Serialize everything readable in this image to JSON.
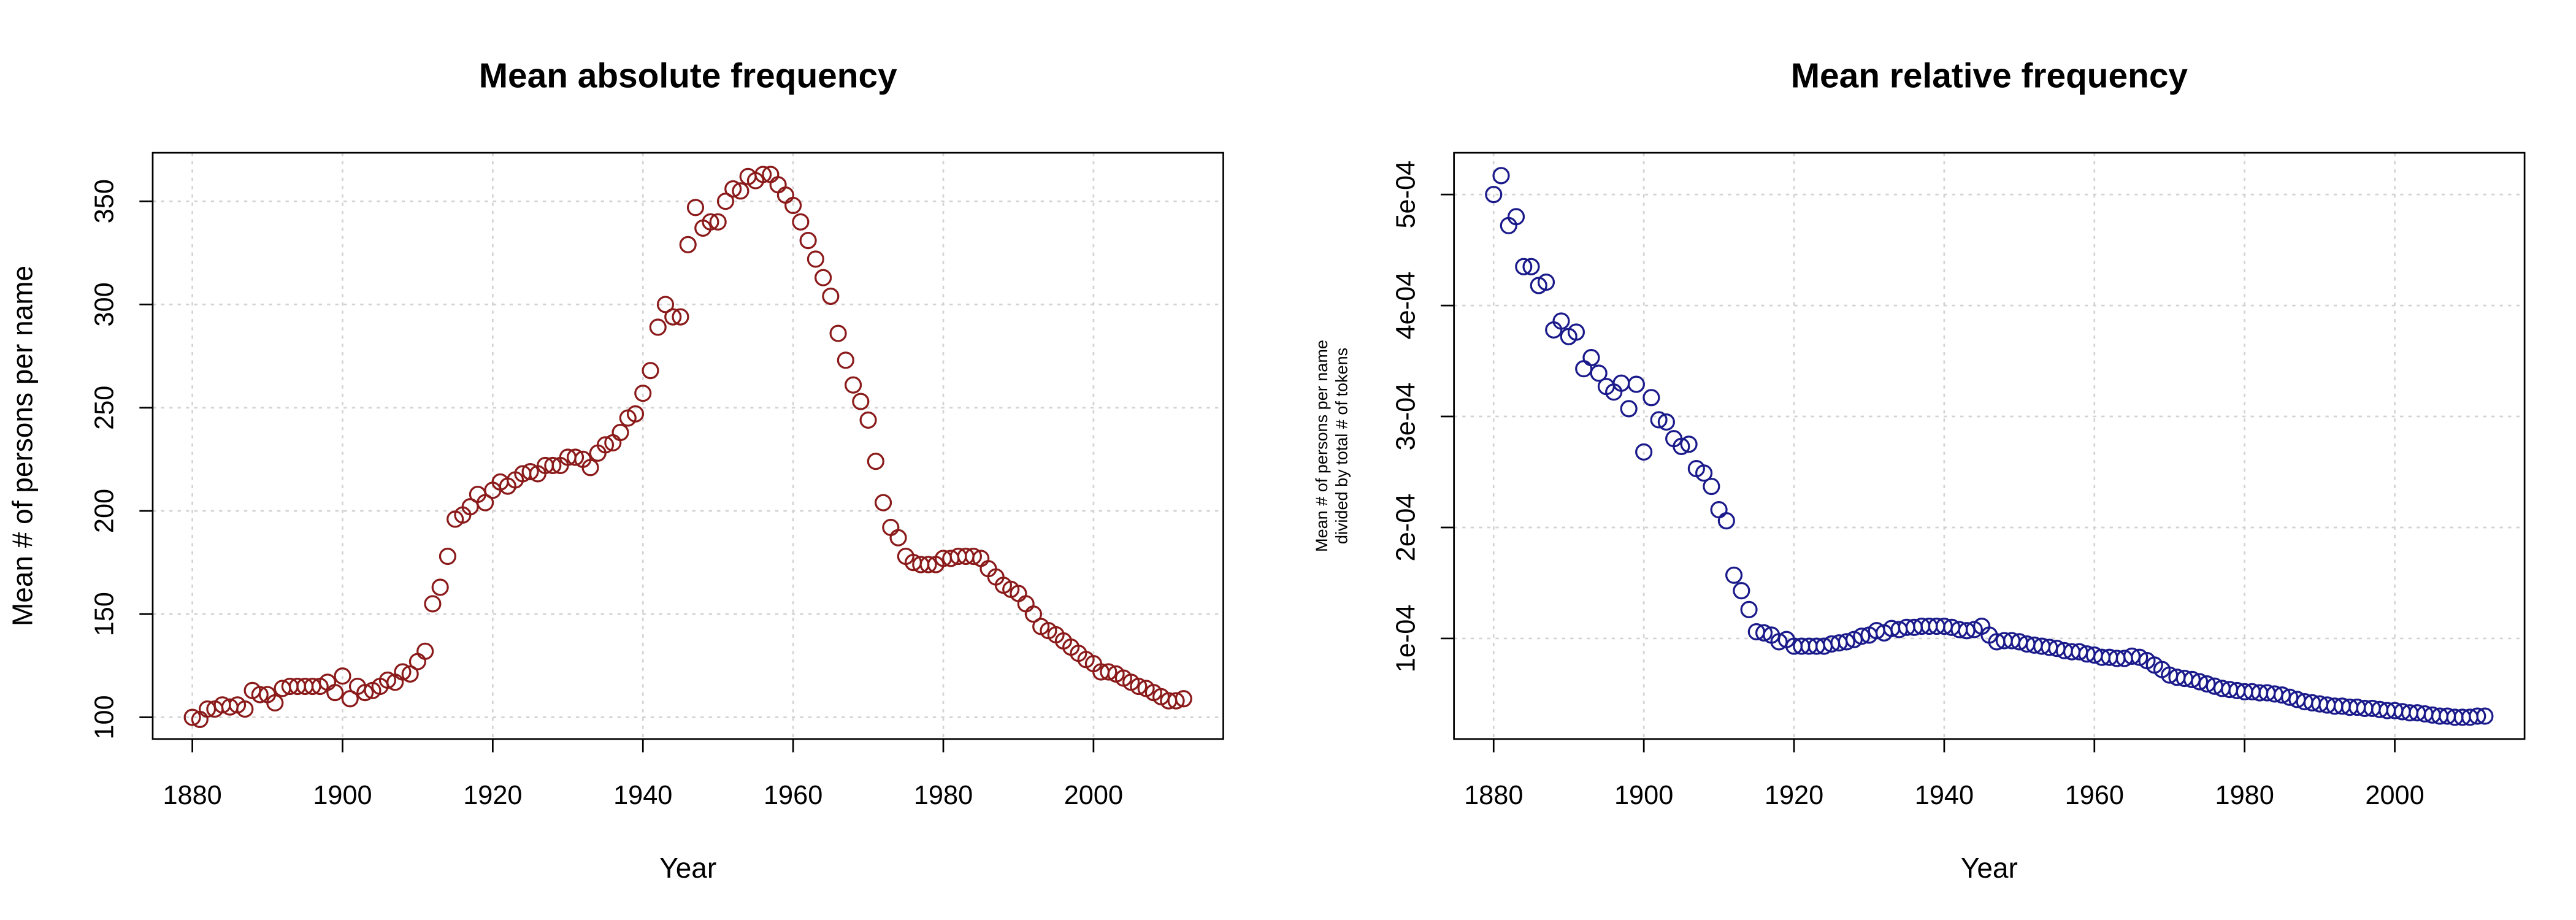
{
  "chart_data": [
    {
      "type": "scatter",
      "title": "Mean absolute frequency",
      "xlabel": "Year",
      "ylabel": [
        "Mean # of persons per name"
      ],
      "color": "#8b1a1a",
      "grid": true,
      "x": [
        1880,
        1881,
        1882,
        1883,
        1884,
        1885,
        1886,
        1887,
        1888,
        1889,
        1890,
        1891,
        1892,
        1893,
        1894,
        1895,
        1896,
        1897,
        1898,
        1899,
        1900,
        1901,
        1902,
        1903,
        1904,
        1905,
        1906,
        1907,
        1908,
        1909,
        1910,
        1911,
        1912,
        1913,
        1914,
        1915,
        1916,
        1917,
        1918,
        1919,
        1920,
        1921,
        1922,
        1923,
        1924,
        1925,
        1926,
        1927,
        1928,
        1929,
        1930,
        1931,
        1932,
        1933,
        1934,
        1935,
        1936,
        1937,
        1938,
        1939,
        1940,
        1941,
        1942,
        1943,
        1944,
        1945,
        1946,
        1947,
        1948,
        1949,
        1950,
        1951,
        1952,
        1953,
        1954,
        1955,
        1956,
        1957,
        1958,
        1959,
        1960,
        1961,
        1962,
        1963,
        1964,
        1965,
        1966,
        1967,
        1968,
        1969,
        1970,
        1971,
        1972,
        1973,
        1974,
        1975,
        1976,
        1977,
        1978,
        1979,
        1980,
        1981,
        1982,
        1983,
        1984,
        1985,
        1986,
        1987,
        1988,
        1989,
        1990,
        1991,
        1992,
        1993,
        1994,
        1995,
        1996,
        1997,
        1998,
        1999,
        2000,
        2001,
        2002,
        2003,
        2004,
        2005,
        2006,
        2007,
        2008,
        2009,
        2010,
        2011,
        2012
      ],
      "values": [
        100,
        99,
        104,
        104,
        106,
        105,
        106,
        104,
        113,
        111,
        111,
        107,
        114,
        115,
        115,
        115,
        115,
        115,
        117,
        112,
        120,
        109,
        115,
        112,
        113,
        115,
        118,
        117,
        122,
        121,
        127,
        132,
        155,
        163,
        178,
        196,
        198,
        202,
        208,
        204,
        210,
        214,
        212,
        215,
        218,
        219,
        218,
        222,
        222,
        222,
        226,
        226,
        225,
        221,
        228,
        232,
        233,
        238,
        245,
        247,
        257,
        268,
        289,
        300,
        294,
        294,
        329,
        347,
        337,
        340,
        340,
        350,
        356,
        355,
        362,
        360,
        363,
        363,
        358,
        353,
        348,
        340,
        331,
        322,
        313,
        304,
        286,
        273,
        261,
        253,
        244,
        224,
        204,
        192,
        187,
        178,
        175,
        174,
        174,
        174,
        177,
        177,
        178,
        178,
        178,
        177,
        172,
        168,
        164,
        162,
        160,
        155,
        150,
        144,
        142,
        140,
        137,
        134,
        131,
        128,
        126,
        122,
        122,
        121,
        119,
        117,
        115,
        114,
        112,
        110,
        108,
        108,
        109
      ],
      "xlim": [
        1874.72,
        2017.28
      ],
      "ylim": [
        89.5,
        373.5
      ],
      "xticks": [
        1880,
        1900,
        1920,
        1940,
        1960,
        1980,
        2000
      ],
      "yticks": [
        100,
        150,
        200,
        250,
        300,
        350
      ]
    },
    {
      "type": "scatter",
      "title": "Mean relative frequency",
      "xlabel": "Year",
      "ylabel": [
        "Mean # of persons per name",
        "divided by total # of tokens"
      ],
      "color": "#1a1a8b",
      "grid": true,
      "x": [
        1880,
        1881,
        1882,
        1883,
        1884,
        1885,
        1886,
        1887,
        1888,
        1889,
        1890,
        1891,
        1892,
        1893,
        1894,
        1895,
        1896,
        1897,
        1898,
        1899,
        1900,
        1901,
        1902,
        1903,
        1904,
        1905,
        1906,
        1907,
        1908,
        1909,
        1910,
        1911,
        1912,
        1913,
        1914,
        1915,
        1916,
        1917,
        1918,
        1919,
        1920,
        1921,
        1922,
        1923,
        1924,
        1925,
        1926,
        1927,
        1928,
        1929,
        1930,
        1931,
        1932,
        1933,
        1934,
        1935,
        1936,
        1937,
        1938,
        1939,
        1940,
        1941,
        1942,
        1943,
        1944,
        1945,
        1946,
        1947,
        1948,
        1949,
        1950,
        1951,
        1952,
        1953,
        1954,
        1955,
        1956,
        1957,
        1958,
        1959,
        1960,
        1961,
        1962,
        1963,
        1964,
        1965,
        1966,
        1967,
        1968,
        1969,
        1970,
        1971,
        1972,
        1973,
        1974,
        1975,
        1976,
        1977,
        1978,
        1979,
        1980,
        1981,
        1982,
        1983,
        1984,
        1985,
        1986,
        1987,
        1988,
        1989,
        1990,
        1991,
        1992,
        1993,
        1994,
        1995,
        1996,
        1997,
        1998,
        1999,
        2000,
        2001,
        2002,
        2003,
        2004,
        2005,
        2006,
        2007,
        2008,
        2009,
        2010,
        2011,
        2012
      ],
      "values": [
        0.0005,
        0.000517,
        0.000472,
        0.00048,
        0.000435,
        0.000435,
        0.000418,
        0.000421,
        0.000378,
        0.000386,
        0.000372,
        0.000376,
        0.000343,
        0.000353,
        0.000339,
        0.000327,
        0.000322,
        0.00033,
        0.000307,
        0.000329,
        0.000268,
        0.000317,
        0.000297,
        0.000295,
        0.00028,
        0.000273,
        0.000275,
        0.000253,
        0.000249,
        0.000237,
        0.000216,
        0.000206,
        0.000157,
        0.000143,
        0.000126,
        0.000106,
        0.000105,
        0.000103,
        9.7e-05,
        9.9e-05,
        9.3e-05,
        9.3e-05,
        9.3e-05,
        9.3e-05,
        9.3e-05,
        9.5e-05,
        9.6e-05,
        9.7e-05,
        9.9e-05,
        0.000102,
        0.000103,
        0.000107,
        0.000105,
        0.000109,
        0.000108,
        0.00011,
        0.00011,
        0.000111,
        0.000111,
        0.000111,
        0.000111,
        0.00011,
        0.000108,
        0.000107,
        0.000108,
        0.000111,
        0.000103,
        9.7e-05,
        9.8e-05,
        9.8e-05,
        9.7e-05,
        9.5e-05,
        9.4e-05,
        9.3e-05,
        9.2e-05,
        9.1e-05,
        8.9e-05,
        8.8e-05,
        8.8e-05,
        8.6e-05,
        8.5e-05,
        8.3e-05,
        8.3e-05,
        8.2e-05,
        8.2e-05,
        8.4e-05,
        8.3e-05,
        8e-05,
        7.6e-05,
        7.2e-05,
        6.7e-05,
        6.5e-05,
        6.4e-05,
        6.3e-05,
        6.1e-05,
        5.9e-05,
        5.7e-05,
        5.5e-05,
        5.4e-05,
        5.3e-05,
        5.2e-05,
        5.2e-05,
        5.1e-05,
        5.1e-05,
        5e-05,
        4.9e-05,
        4.7e-05,
        4.5e-05,
        4.3e-05,
        4.2e-05,
        4.1e-05,
        4e-05,
        3.9e-05,
        3.9e-05,
        3.8e-05,
        3.8e-05,
        3.7e-05,
        3.7e-05,
        3.6e-05,
        3.5e-05,
        3.5e-05,
        3.4e-05,
        3.3e-05,
        3.3e-05,
        3.2e-05,
        3.1e-05,
        3e-05,
        3e-05,
        2.9e-05,
        2.9e-05,
        2.9e-05,
        3e-05,
        3e-05
      ],
      "xlim": [
        1874.72,
        2017.28
      ],
      "ylim": [
        9.4e-06,
        0.0005376
      ],
      "xticks": [
        1880,
        1900,
        1920,
        1940,
        1960,
        1980,
        2000
      ],
      "yticks": [
        {
          "value": 0.0001,
          "label": "1e-04"
        },
        {
          "value": 0.0002,
          "label": "2e-04"
        },
        {
          "value": 0.0003,
          "label": "3e-04"
        },
        {
          "value": 0.0004,
          "label": "4e-04"
        },
        {
          "value": 0.0005,
          "label": "5e-04"
        }
      ]
    }
  ]
}
